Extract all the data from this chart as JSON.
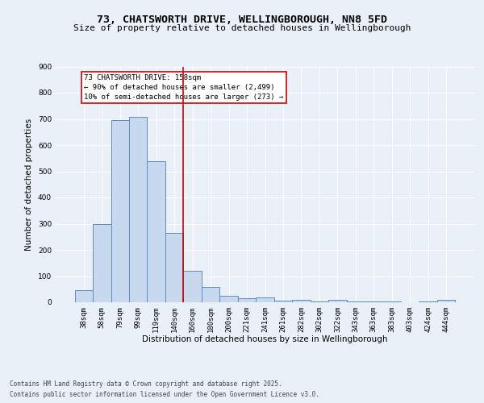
{
  "title_line1": "73, CHATSWORTH DRIVE, WELLINGBOROUGH, NN8 5FD",
  "title_line2": "Size of property relative to detached houses in Wellingborough",
  "xlabel": "Distribution of detached houses by size in Wellingborough",
  "ylabel": "Number of detached properties",
  "bar_labels": [
    "38sqm",
    "58sqm",
    "79sqm",
    "99sqm",
    "119sqm",
    "140sqm",
    "160sqm",
    "180sqm",
    "200sqm",
    "221sqm",
    "241sqm",
    "261sqm",
    "282sqm",
    "302sqm",
    "322sqm",
    "343sqm",
    "363sqm",
    "383sqm",
    "403sqm",
    "424sqm",
    "444sqm"
  ],
  "bar_values": [
    45,
    300,
    695,
    708,
    540,
    265,
    120,
    58,
    25,
    14,
    17,
    7,
    10,
    4,
    10,
    3,
    3,
    2,
    1,
    4,
    8
  ],
  "bar_color": "#c9d9ed",
  "bar_edge_color": "#5b8dc8",
  "vline_x_index": 6,
  "vline_color": "#cc0000",
  "annotation_text": "73 CHATSWORTH DRIVE: 158sqm\n← 90% of detached houses are smaller (2,499)\n10% of semi-detached houses are larger (273) →",
  "annotation_box_color": "#cc0000",
  "ylim": [
    0,
    900
  ],
  "yticks": [
    0,
    100,
    200,
    300,
    400,
    500,
    600,
    700,
    800,
    900
  ],
  "bg_color": "#eaf0f8",
  "plot_bg_color": "#eaf0f8",
  "footer_line1": "Contains HM Land Registry data © Crown copyright and database right 2025.",
  "footer_line2": "Contains public sector information licensed under the Open Government Licence v3.0.",
  "title_fontsize": 9.5,
  "subtitle_fontsize": 8,
  "axis_label_fontsize": 7.5,
  "tick_fontsize": 6.5,
  "annotation_fontsize": 6.5,
  "footer_fontsize": 5.5
}
